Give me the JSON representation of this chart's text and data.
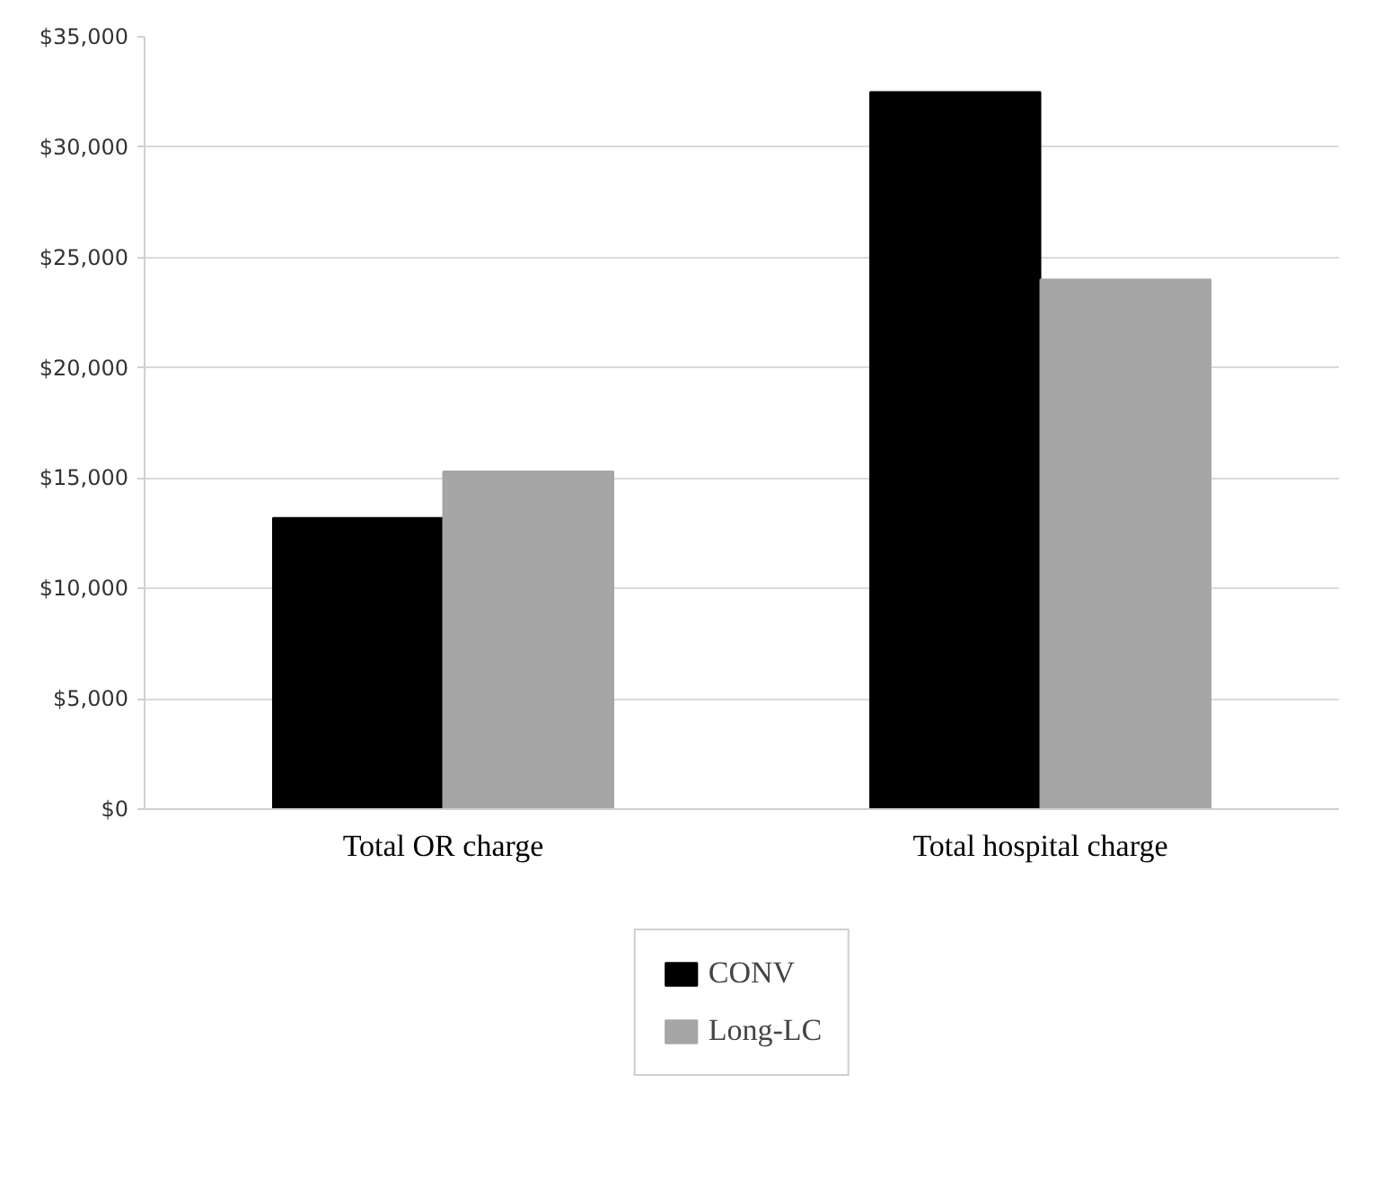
{
  "chart_data": {
    "type": "bar",
    "categories": [
      "Total OR charge",
      "Total hospital charge"
    ],
    "series": [
      {
        "name": "CONV",
        "color": "#000000",
        "values": [
          13200,
          32500
        ]
      },
      {
        "name": "Long-LC",
        "color": "#a6a6a6",
        "values": [
          15300,
          24000
        ]
      }
    ],
    "ylim": [
      0,
      35000
    ],
    "yticks": [
      {
        "value": 0,
        "label": "$0"
      },
      {
        "value": 5000,
        "label": "$5,000"
      },
      {
        "value": 10000,
        "label": "$10,000"
      },
      {
        "value": 15000,
        "label": "$15,000"
      },
      {
        "value": 20000,
        "label": "$20,000"
      },
      {
        "value": 25000,
        "label": "$25,000"
      },
      {
        "value": 30000,
        "label": "$30,000"
      },
      {
        "value": 35000,
        "label": "$35,000"
      }
    ],
    "grid": "y",
    "legend": "bottom"
  }
}
